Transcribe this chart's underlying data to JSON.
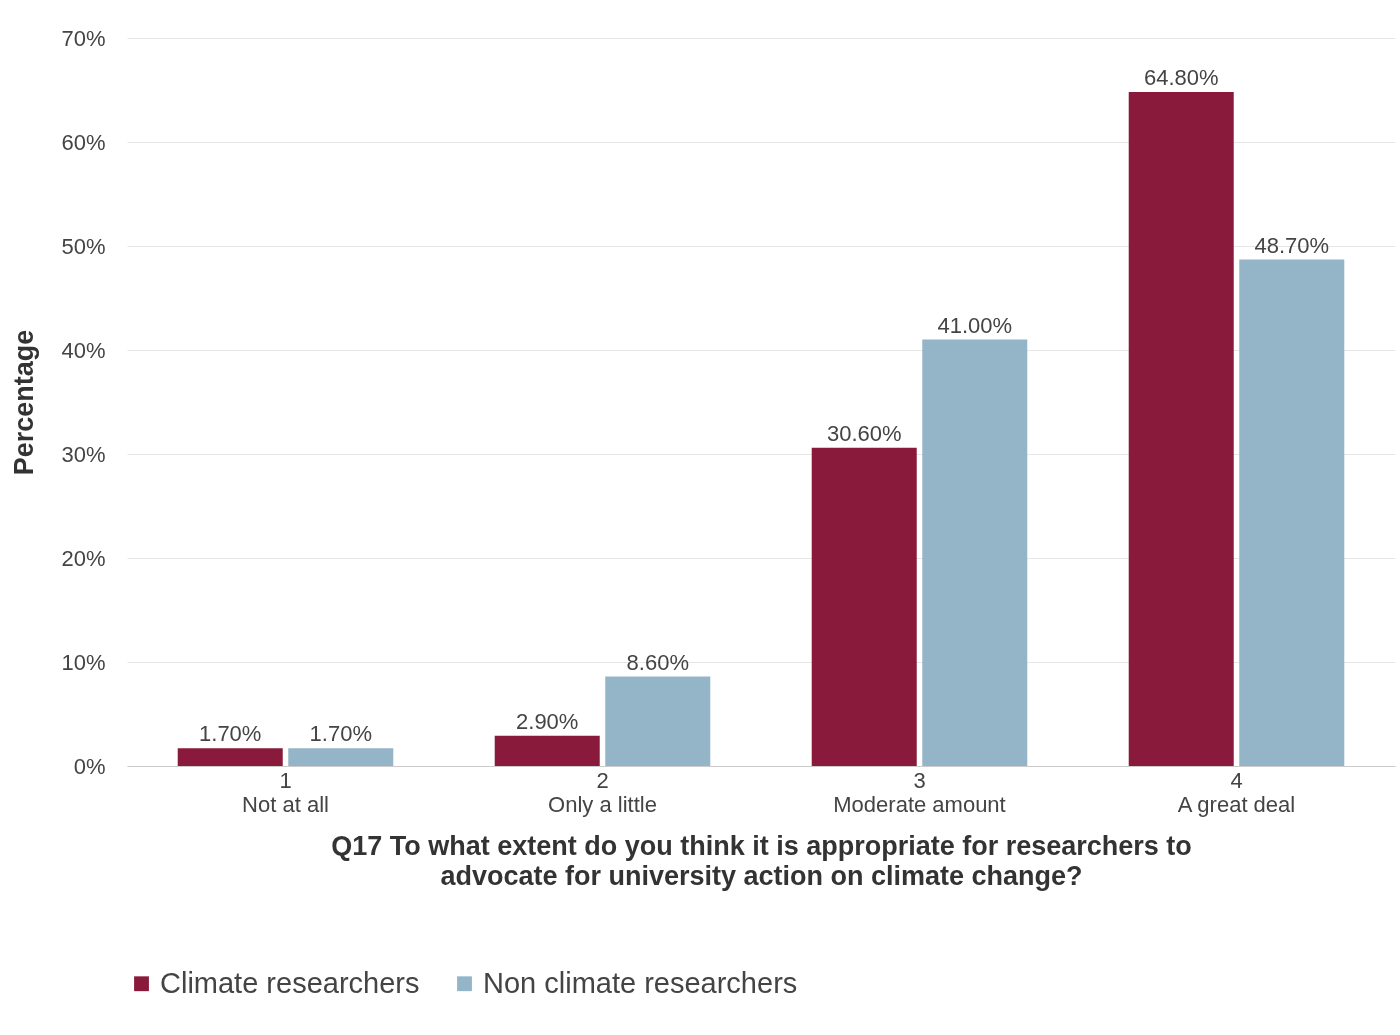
{
  "chart_data": {
    "type": "bar",
    "xlabel": "Q17 To what extent do you think it is appropriate for researchers to\nadvocate for university action on climate change?",
    "ylabel": "Percentage",
    "categories": [
      "1\nNot at all",
      "2\nOnly a little",
      "3\nModerate amount",
      "4\nA great deal"
    ],
    "series": [
      {
        "name": "Climate researchers",
        "color": "#8a1a3b",
        "values": [
          1.7,
          2.9,
          30.6,
          64.8
        ],
        "value_labels": [
          "1.70%",
          "2.90%",
          "30.60%",
          "64.80%"
        ]
      },
      {
        "name": "Non climate researchers",
        "color": "#94b5c7",
        "values": [
          1.7,
          8.6,
          41.0,
          48.7
        ],
        "value_labels": [
          "1.70%",
          "8.60%",
          "41.00%",
          "48.70%"
        ]
      }
    ],
    "ylim": [
      0,
      70
    ],
    "yticks": [
      {
        "value": 0,
        "label": "0%"
      },
      {
        "value": 10,
        "label": "10%"
      },
      {
        "value": 20,
        "label": "20%"
      },
      {
        "value": 30,
        "label": "30%"
      },
      {
        "value": 40,
        "label": "40%"
      },
      {
        "value": 50,
        "label": "50%"
      },
      {
        "value": 60,
        "label": "60%"
      },
      {
        "value": 70,
        "label": "70%"
      }
    ],
    "grid": "y",
    "legend": "bottom"
  }
}
